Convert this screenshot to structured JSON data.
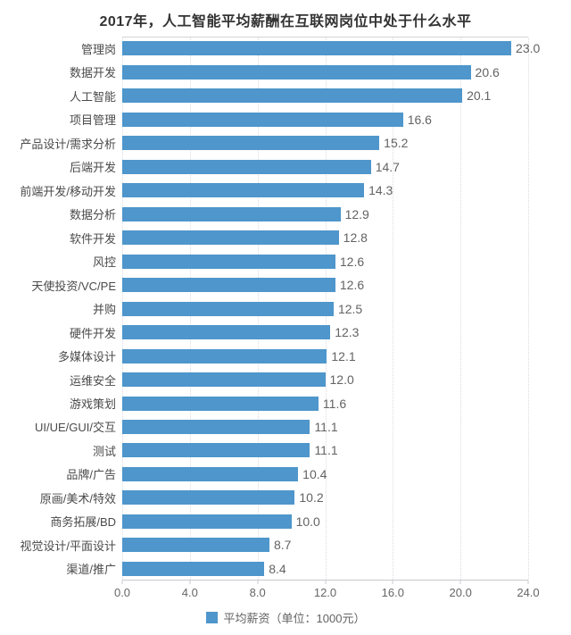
{
  "chart_data": {
    "type": "bar",
    "orientation": "horizontal",
    "title": "2017年，人工智能平均薪酬在互联网岗位中处于什么水平",
    "categories": [
      "管理岗",
      "数据开发",
      "人工智能",
      "项目管理",
      "产品设计/需求分析",
      "后端开发",
      "前端开发/移动开发",
      "数据分析",
      "软件开发",
      "风控",
      "天使投资/VC/PE",
      "并购",
      "硬件开发",
      "多媒体设计",
      "运维安全",
      "游戏策划",
      "UI/UE/GUI/交互",
      "测试",
      "品牌/广告",
      "原画/美术/特效",
      "商务拓展/BD",
      "视觉设计/平面设计",
      "渠道/推广"
    ],
    "values": [
      23.0,
      20.6,
      20.1,
      16.6,
      15.2,
      14.7,
      14.3,
      12.9,
      12.8,
      12.6,
      12.6,
      12.5,
      12.3,
      12.1,
      12.0,
      11.6,
      11.1,
      11.1,
      10.4,
      10.2,
      10.0,
      8.7,
      8.4
    ],
    "xlim": [
      0,
      24
    ],
    "x_tick_values": [
      0,
      4,
      8,
      12,
      16,
      20,
      24
    ],
    "x_tick_labels": [
      "0.0",
      "4.0",
      "8.0",
      "12.0",
      "16.0",
      "20.0",
      "24.0"
    ],
    "grid": "vertical-dotted",
    "legend": {
      "label": "平均薪资（单位：1000元）",
      "position": "bottom-center"
    },
    "colors": {
      "bar": "#4e96cb",
      "title_text": "#333333",
      "category_text": "#4a4a4a",
      "value_text": "#636363",
      "gridline": "#dcdce2"
    }
  }
}
